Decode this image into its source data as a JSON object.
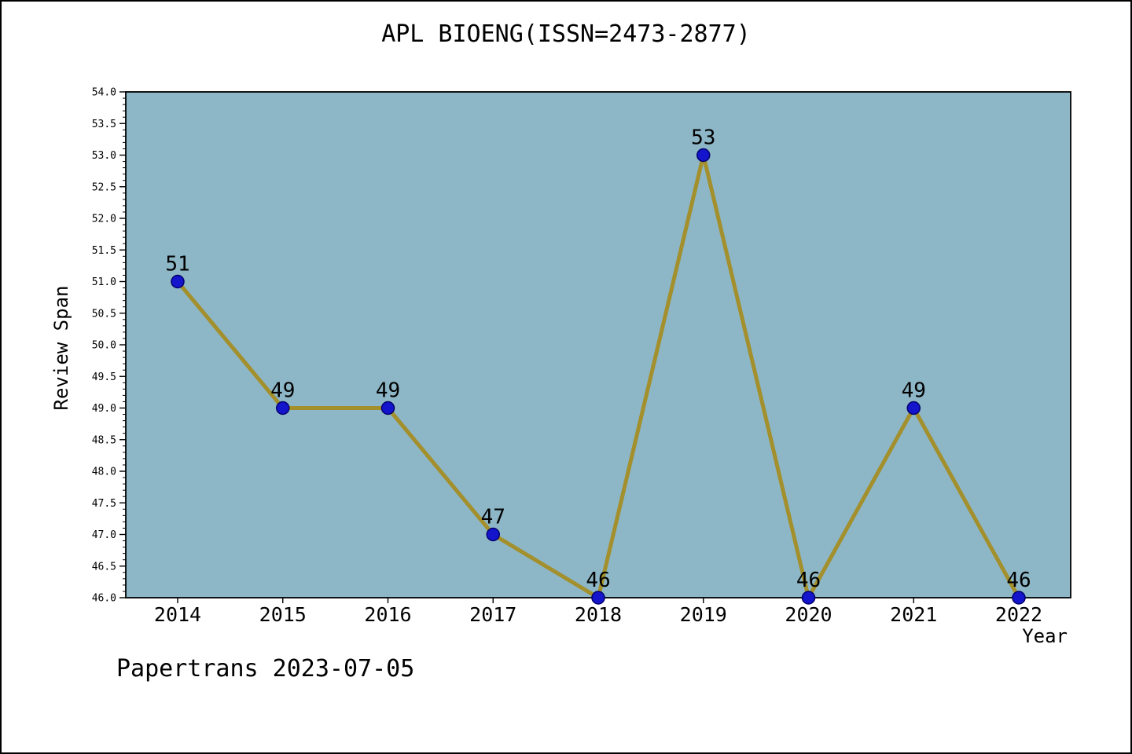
{
  "footer": "Papertrans 2023-07-05",
  "chart_data": {
    "type": "line",
    "title": "APL BIOENG(ISSN=2473-2877)",
    "xlabel": "Year",
    "ylabel": "Review Span",
    "x": [
      2014,
      2015,
      2016,
      2017,
      2018,
      2019,
      2020,
      2021,
      2022
    ],
    "values": [
      51,
      49,
      49,
      47,
      46,
      53,
      46,
      49,
      46
    ],
    "point_labels": [
      "51",
      "49",
      "49",
      "47",
      "46",
      "53",
      "46",
      "49",
      "46"
    ],
    "ylim": [
      46.0,
      54.0
    ],
    "ytick_step": 0.5,
    "ytick_minor_step": 0.1,
    "grid": false,
    "legend": null,
    "colors": {
      "line": "#a3902c",
      "marker": "#1414cc",
      "marker_edge": "#00006e",
      "plot_background": "#8db6c6",
      "page_background": "#ffffff",
      "text": "#000000"
    }
  }
}
